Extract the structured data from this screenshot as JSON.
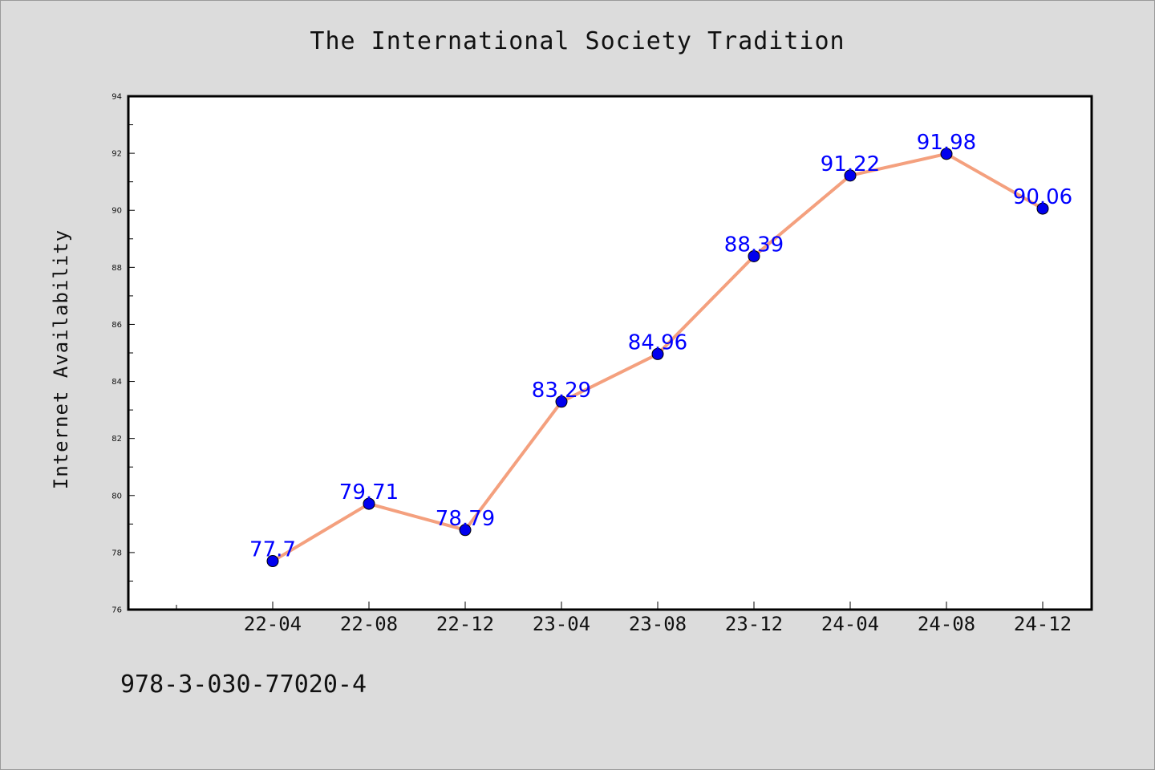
{
  "chart_data": {
    "type": "line",
    "title": "The International Society Tradition",
    "xlabel": "",
    "ylabel": "Internet Availability",
    "categories": [
      "22-04",
      "22-08",
      "22-12",
      "23-04",
      "23-08",
      "23-12",
      "24-04",
      "24-08",
      "24-12"
    ],
    "series": [
      {
        "values": [
          77.7,
          79.71,
          78.79,
          83.29,
          84.96,
          88.39,
          91.22,
          91.98,
          90.06
        ],
        "labels": [
          "77.7",
          "79.71",
          "78.79",
          "83.29",
          "84.96",
          "88.39",
          "91.22",
          "91.98",
          "90.06"
        ],
        "line_color": "#f4a07e",
        "marker_color": "#0000ee"
      }
    ],
    "ylim": [
      76,
      94
    ],
    "yticks": [
      "76",
      "78",
      "80",
      "82",
      "84",
      "86",
      "88",
      "90",
      "92",
      "94"
    ],
    "grid": false,
    "legend": "none"
  },
  "footer_text": "978-3-030-77020-4"
}
